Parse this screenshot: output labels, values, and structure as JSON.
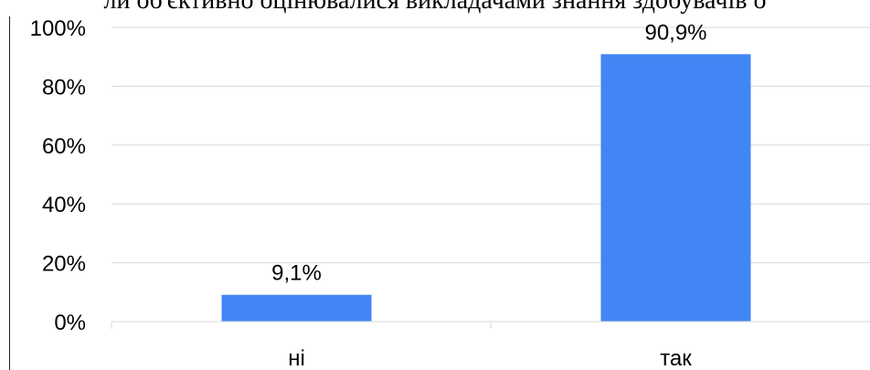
{
  "title": "ли об'єктивно оцінювалися викладачами знання здобувачів о",
  "chart_data": {
    "type": "bar",
    "categories": [
      "ні",
      "так"
    ],
    "values": [
      9.1,
      90.9
    ],
    "data_labels": [
      "9,1%",
      "90,9%"
    ],
    "yticks": [
      "0%",
      "20%",
      "40%",
      "60%",
      "80%",
      "100%"
    ],
    "ylim": [
      0,
      100
    ],
    "grid": true,
    "bar_color": "#4285f4",
    "grid_color": "#d9d9d9"
  }
}
